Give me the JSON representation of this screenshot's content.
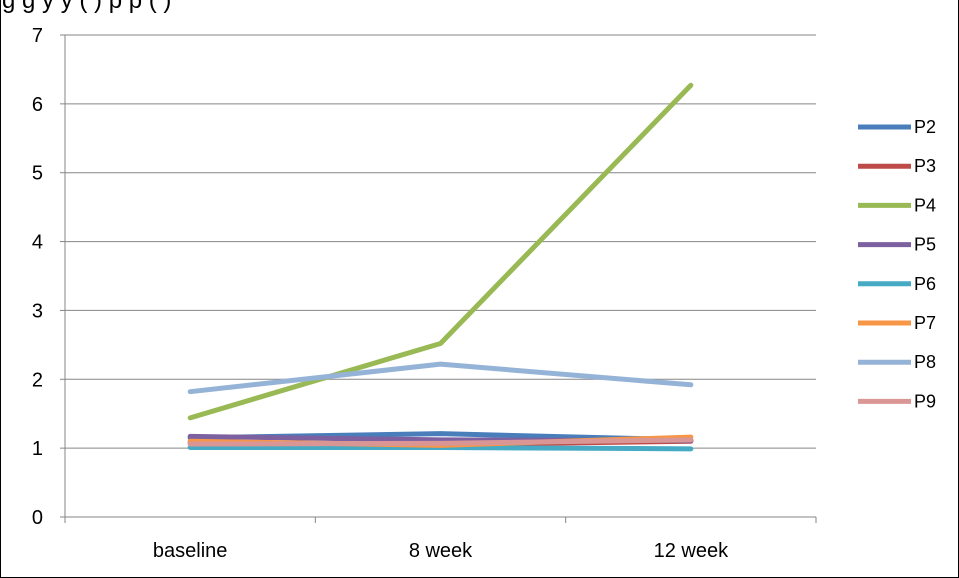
{
  "chart_data": {
    "type": "line",
    "title": "g  ...  g   ...  y   ...  y  ...  (   )  p   ...  p   (   )",
    "categories": [
      "baseline",
      "8 week",
      "12 week"
    ],
    "ylim": [
      0,
      7
    ],
    "yticks": [
      0,
      1,
      2,
      3,
      4,
      5,
      6,
      7
    ],
    "grid": true,
    "legend_position": "right",
    "series": [
      {
        "name": "P2",
        "color": "#4a7ebb",
        "values": [
          1.15,
          1.21,
          1.12
        ]
      },
      {
        "name": "P3",
        "color": "#be4b48",
        "values": [
          1.08,
          1.05,
          1.1
        ]
      },
      {
        "name": "P4",
        "color": "#98b954",
        "values": [
          1.44,
          2.52,
          6.27
        ]
      },
      {
        "name": "P5",
        "color": "#7d60a0",
        "values": [
          1.17,
          1.12,
          1.11
        ]
      },
      {
        "name": "P6",
        "color": "#46aac5",
        "values": [
          1.01,
          1.01,
          0.99
        ]
      },
      {
        "name": "P7",
        "color": "#f79646",
        "values": [
          1.1,
          1.04,
          1.16
        ]
      },
      {
        "name": "P8",
        "color": "#95b3d7",
        "values": [
          1.82,
          2.22,
          1.92
        ]
      },
      {
        "name": "P9",
        "color": "#d99694",
        "values": [
          1.06,
          1.07,
          1.12
        ]
      }
    ]
  }
}
